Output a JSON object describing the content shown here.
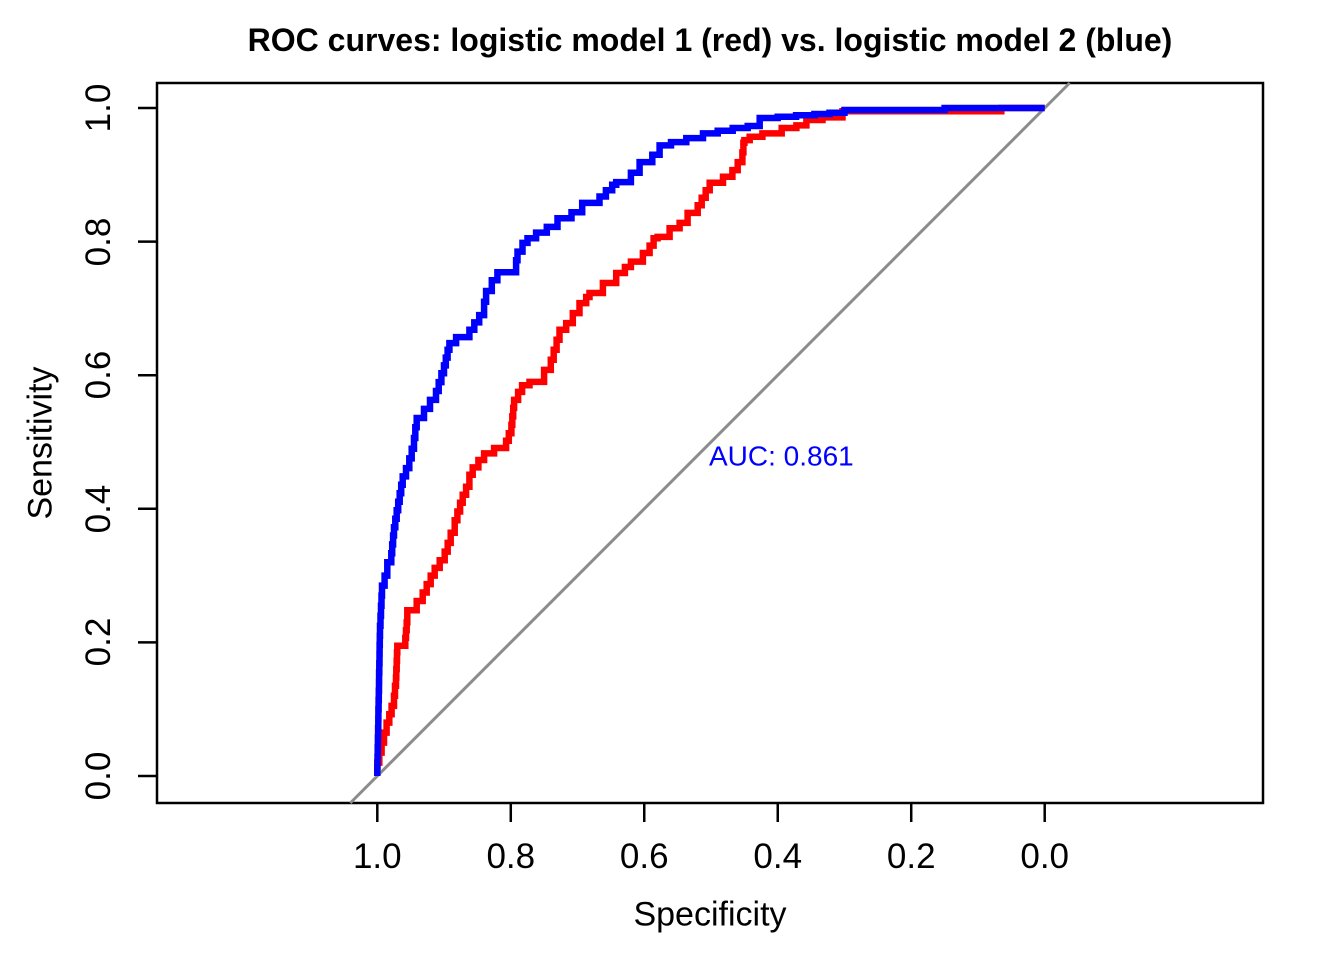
{
  "chart_data": {
    "type": "line",
    "subtype": "roc-step-curves",
    "title": "ROC curves: logistic model 1 (red) vs. logistic model 2 (blue)",
    "xlabel": "Specificity",
    "ylabel": "Sensitivity",
    "x_range": [
      1.0,
      0.0
    ],
    "y_range": [
      0.0,
      1.0
    ],
    "x_axis_reversed": true,
    "grid": false,
    "legend": "none",
    "x_ticks": {
      "labels": [
        "1.0",
        "0.8",
        "0.6",
        "0.4",
        "0.2",
        "0.0"
      ],
      "values": [
        1.0,
        0.8,
        0.6,
        0.4,
        0.2,
        0.0
      ]
    },
    "y_ticks": {
      "labels": [
        "0.0",
        "0.2",
        "0.4",
        "0.6",
        "0.8",
        "1.0"
      ],
      "values": [
        0.0,
        0.2,
        0.4,
        0.6,
        0.8,
        1.0
      ]
    },
    "reference_line": {
      "description": "identity diagonal (sensitivity = 1 - specificity)",
      "color": "#8C8C8C"
    },
    "annotation": {
      "text": "AUC: 0.861",
      "value": 0.861,
      "series": "logistic model 2",
      "color": "#0000FF",
      "at_specificity": 0.505,
      "at_sensitivity": 0.478
    },
    "series": [
      {
        "name": "logistic model 1",
        "color": "#FF0000",
        "points": [
          [
            1.0,
            0.0
          ],
          [
            0.997,
            0.02
          ],
          [
            0.99,
            0.05
          ],
          [
            0.982,
            0.08
          ],
          [
            0.975,
            0.105
          ],
          [
            0.972,
            0.135
          ],
          [
            0.97,
            0.185
          ],
          [
            0.958,
            0.195
          ],
          [
            0.955,
            0.23
          ],
          [
            0.941,
            0.248
          ],
          [
            0.932,
            0.262
          ],
          [
            0.914,
            0.3
          ],
          [
            0.899,
            0.323
          ],
          [
            0.89,
            0.349
          ],
          [
            0.884,
            0.364
          ],
          [
            0.88,
            0.383
          ],
          [
            0.872,
            0.409
          ],
          [
            0.862,
            0.433
          ],
          [
            0.857,
            0.451
          ],
          [
            0.84,
            0.473
          ],
          [
            0.825,
            0.483
          ],
          [
            0.807,
            0.491
          ],
          [
            0.799,
            0.513
          ],
          [
            0.795,
            0.551
          ],
          [
            0.783,
            0.575
          ],
          [
            0.772,
            0.585
          ],
          [
            0.75,
            0.59
          ],
          [
            0.74,
            0.608
          ],
          [
            0.727,
            0.653
          ],
          [
            0.717,
            0.668
          ],
          [
            0.707,
            0.678
          ],
          [
            0.687,
            0.708
          ],
          [
            0.682,
            0.717
          ],
          [
            0.662,
            0.723
          ],
          [
            0.642,
            0.738
          ],
          [
            0.629,
            0.753
          ],
          [
            0.62,
            0.762
          ],
          [
            0.602,
            0.77
          ],
          [
            0.592,
            0.783
          ],
          [
            0.58,
            0.805
          ],
          [
            0.562,
            0.807
          ],
          [
            0.547,
            0.82
          ],
          [
            0.535,
            0.828
          ],
          [
            0.52,
            0.843
          ],
          [
            0.502,
            0.877
          ],
          [
            0.482,
            0.888
          ],
          [
            0.468,
            0.897
          ],
          [
            0.46,
            0.907
          ],
          [
            0.453,
            0.919
          ],
          [
            0.45,
            0.948
          ],
          [
            0.442,
            0.952
          ],
          [
            0.423,
            0.957
          ],
          [
            0.394,
            0.962
          ],
          [
            0.372,
            0.97
          ],
          [
            0.357,
            0.974
          ],
          [
            0.333,
            0.982
          ],
          [
            0.303,
            0.986
          ],
          [
            0.297,
            0.995
          ],
          [
            0.065,
            0.995
          ],
          [
            0.06,
            1.0
          ],
          [
            0.0,
            1.0
          ]
        ]
      },
      {
        "name": "logistic model 2",
        "color": "#0000FF",
        "auc": 0.861,
        "points": [
          [
            1.0,
            0.0
          ],
          [
            0.998,
            0.1
          ],
          [
            0.996,
            0.21
          ],
          [
            0.993,
            0.27
          ],
          [
            0.985,
            0.3
          ],
          [
            0.979,
            0.32
          ],
          [
            0.975,
            0.36
          ],
          [
            0.971,
            0.385
          ],
          [
            0.962,
            0.436
          ],
          [
            0.952,
            0.461
          ],
          [
            0.945,
            0.49
          ],
          [
            0.941,
            0.522
          ],
          [
            0.93,
            0.536
          ],
          [
            0.912,
            0.563
          ],
          [
            0.9,
            0.603
          ],
          [
            0.892,
            0.638
          ],
          [
            0.882,
            0.648
          ],
          [
            0.862,
            0.657
          ],
          [
            0.84,
            0.69
          ],
          [
            0.837,
            0.71
          ],
          [
            0.82,
            0.742
          ],
          [
            0.792,
            0.754
          ],
          [
            0.79,
            0.772
          ],
          [
            0.775,
            0.798
          ],
          [
            0.762,
            0.805
          ],
          [
            0.73,
            0.822
          ],
          [
            0.709,
            0.835
          ],
          [
            0.693,
            0.844
          ],
          [
            0.667,
            0.858
          ],
          [
            0.648,
            0.877
          ],
          [
            0.642,
            0.885
          ],
          [
            0.62,
            0.889
          ],
          [
            0.607,
            0.903
          ],
          [
            0.588,
            0.919
          ],
          [
            0.577,
            0.93
          ],
          [
            0.56,
            0.944
          ],
          [
            0.537,
            0.949
          ],
          [
            0.512,
            0.955
          ],
          [
            0.49,
            0.962
          ],
          [
            0.445,
            0.97
          ],
          [
            0.427,
            0.973
          ],
          [
            0.4,
            0.985
          ],
          [
            0.345,
            0.989
          ],
          [
            0.3,
            0.993
          ],
          [
            0.28,
            0.997
          ],
          [
            0.15,
            0.997
          ],
          [
            0.145,
            1.0
          ],
          [
            0.0,
            1.0
          ]
        ]
      }
    ]
  }
}
